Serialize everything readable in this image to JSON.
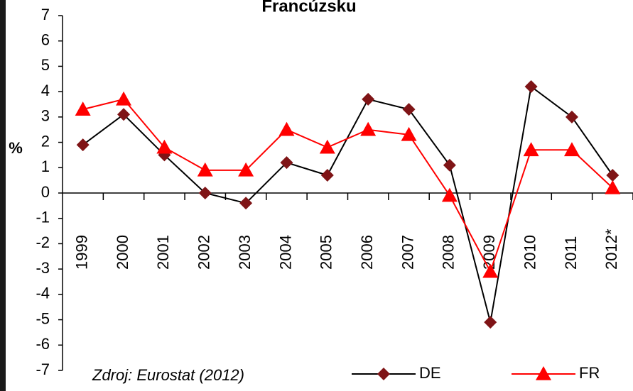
{
  "chart_data": {
    "type": "line",
    "title": "Francúzsku",
    "y_label": "%",
    "source": "Zdroj: Eurostat (2012)",
    "categories": [
      "1999",
      "2000",
      "2001",
      "2002",
      "2003",
      "2004",
      "2005",
      "2006",
      "2007",
      "2008",
      "2009",
      "2010",
      "2011",
      "2012*"
    ],
    "series": [
      {
        "name": "DE",
        "color": "#7f1416",
        "marker": "diamond",
        "line_color": "#000000",
        "values": [
          1.9,
          3.1,
          1.5,
          0.0,
          -0.4,
          1.2,
          0.7,
          3.7,
          3.3,
          1.1,
          -5.1,
          4.2,
          3.0,
          0.7
        ]
      },
      {
        "name": "FR",
        "color": "#ff0000",
        "marker": "triangle",
        "line_color": "#ff0000",
        "values": [
          3.3,
          3.7,
          1.8,
          0.9,
          0.9,
          2.5,
          1.8,
          2.5,
          2.3,
          -0.1,
          -3.1,
          1.7,
          1.7,
          0.2
        ]
      }
    ],
    "ylim": [
      -7,
      7
    ],
    "yticks": [
      -7,
      -6,
      -5,
      -4,
      -3,
      -2,
      -1,
      0,
      1,
      2,
      3,
      4,
      5,
      6,
      7
    ]
  }
}
